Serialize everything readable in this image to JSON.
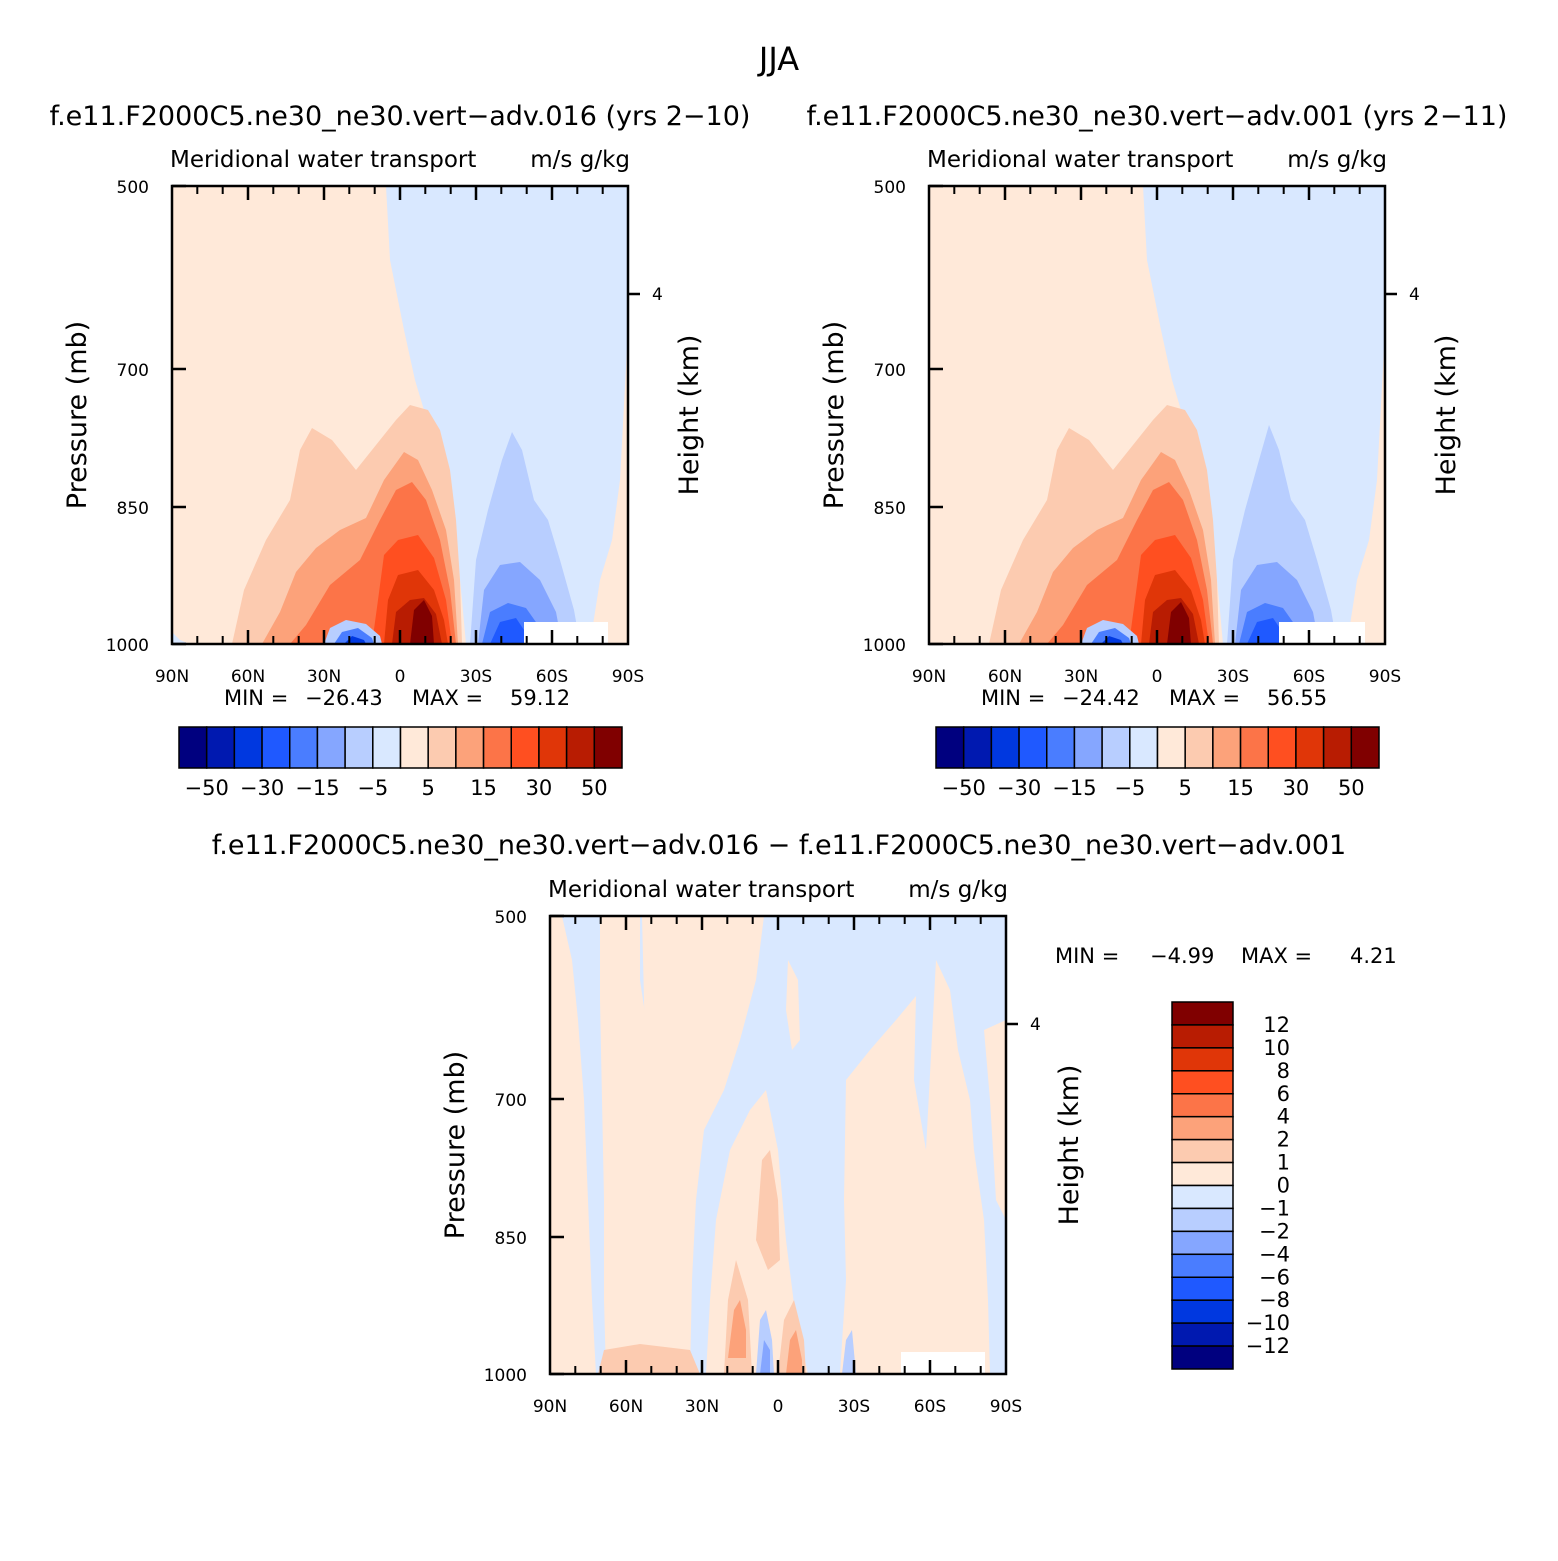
{
  "page_title": "JJA",
  "chart_data": [
    {
      "type": "heatmap",
      "title": "f.e11.F2000C5.ne30_ne30.vert−adv.016 (yrs 2−10)",
      "left_label": "Meridional water transport",
      "units": "m/s g/kg",
      "xlabel": "",
      "ylabel": "Pressure (mb)",
      "right_label": "Height (km)",
      "xticks": [
        "90N",
        "60N",
        "30N",
        "0",
        "30S",
        "60S",
        "90S"
      ],
      "xlim": [
        90,
        -90
      ],
      "yticks": [
        "500",
        "700",
        "850",
        "1000"
      ],
      "ylim": [
        1000,
        500
      ],
      "right_ticks": [
        "4"
      ],
      "min": -26.43,
      "max": 59.12,
      "minmax_text": {
        "min_label": "MIN =",
        "min_value": "−26.43",
        "max_label": "MAX =",
        "max_value": "59.12"
      },
      "colorbar": {
        "orientation": "horizontal",
        "levels": [
          -50,
          -40,
          -30,
          -20,
          -15,
          -10,
          -5,
          0,
          5,
          10,
          15,
          20,
          30,
          40,
          50
        ],
        "tick_labels": [
          "−50",
          "−30",
          "−15",
          "−5",
          "5",
          "15",
          "30",
          "50"
        ]
      }
    },
    {
      "type": "heatmap",
      "title": "f.e11.F2000C5.ne30_ne30.vert−adv.001 (yrs 2−11)",
      "left_label": "Meridional water transport",
      "units": "m/s g/kg",
      "xlabel": "",
      "ylabel": "Pressure (mb)",
      "right_label": "Height (km)",
      "xticks": [
        "90N",
        "60N",
        "30N",
        "0",
        "30S",
        "60S",
        "90S"
      ],
      "xlim": [
        90,
        -90
      ],
      "yticks": [
        "500",
        "700",
        "850",
        "1000"
      ],
      "ylim": [
        1000,
        500
      ],
      "right_ticks": [
        "4"
      ],
      "min": -24.42,
      "max": 56.55,
      "minmax_text": {
        "min_label": "MIN =",
        "min_value": "−24.42",
        "max_label": "MAX =",
        "max_value": "56.55"
      },
      "colorbar": {
        "orientation": "horizontal",
        "levels": [
          -50,
          -40,
          -30,
          -20,
          -15,
          -10,
          -5,
          0,
          5,
          10,
          15,
          20,
          30,
          40,
          50
        ],
        "tick_labels": [
          "−50",
          "−30",
          "−15",
          "−5",
          "5",
          "15",
          "30",
          "50"
        ]
      }
    },
    {
      "type": "heatmap",
      "title": "f.e11.F2000C5.ne30_ne30.vert−adv.016 − f.e11.F2000C5.ne30_ne30.vert−adv.001",
      "left_label": "Meridional water transport",
      "units": "m/s g/kg",
      "xlabel": "",
      "ylabel": "Pressure (mb)",
      "right_label": "Height (km)",
      "xticks": [
        "90N",
        "60N",
        "30N",
        "0",
        "30S",
        "60S",
        "90S"
      ],
      "xlim": [
        90,
        -90
      ],
      "yticks": [
        "500",
        "700",
        "850",
        "1000"
      ],
      "ylim": [
        1000,
        500
      ],
      "right_ticks": [
        "4"
      ],
      "min": -4.99,
      "max": 4.21,
      "minmax_text": {
        "min_label": "MIN =",
        "min_value": "−4.99",
        "max_label": "MAX =",
        "max_value": "4.21"
      },
      "colorbar": {
        "orientation": "vertical",
        "levels": [
          -12,
          -10,
          -8,
          -6,
          -4,
          -2,
          -1,
          0,
          1,
          2,
          4,
          6,
          8,
          10,
          12
        ],
        "tick_labels": [
          "12",
          "10",
          "8",
          "6",
          "4",
          "2",
          "1",
          "0",
          "−1",
          "−2",
          "−4",
          "−6",
          "−8",
          "−10",
          "−12"
        ]
      }
    }
  ],
  "colors": [
    "#00007f",
    "#0019b0",
    "#0038e0",
    "#1f59ff",
    "#4a7dff",
    "#85a6ff",
    "#b8ceff",
    "#d9e8ff",
    "#ffe9d9",
    "#fccbb0",
    "#fca27a",
    "#fc7448",
    "#ff4f20",
    "#e03608",
    "#b81c02",
    "#800000"
  ],
  "missing_color": "#ffffff"
}
